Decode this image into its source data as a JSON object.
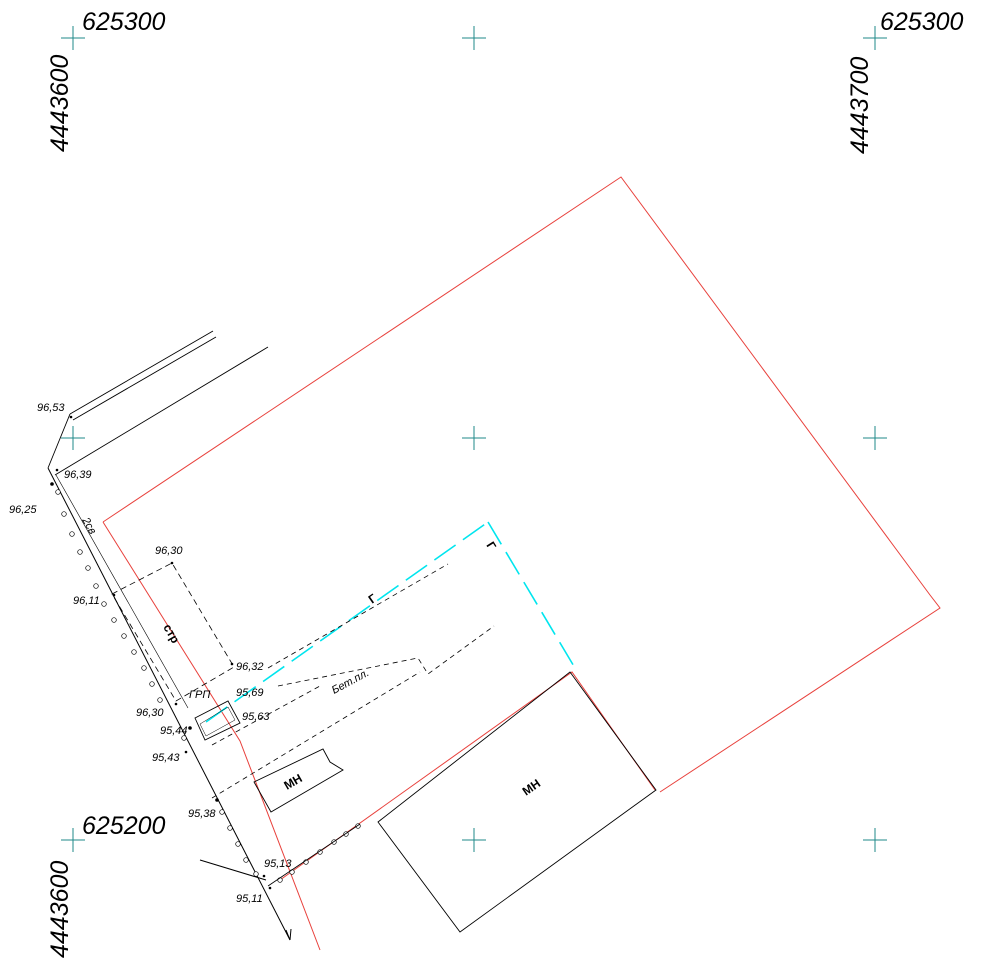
{
  "grid": {
    "top_left_x": "625300",
    "top_left_y": "4443600",
    "top_right_x": "625300",
    "top_right_y": "4443700",
    "bottom_left_x": "625200",
    "bottom_left_y": "4443600"
  },
  "elevations": [
    "96,53",
    "96,39",
    "96,25",
    "96,30",
    "96,11",
    "96,32",
    "95,69",
    "95,63",
    "96,30",
    "95,44",
    "95,43",
    "95,38",
    "95,13",
    "95,11"
  ],
  "labels": {
    "str": "стр",
    "grp": "ГРП",
    "bet": "Бет.пл.",
    "two_sv": "2св",
    "mn_small": "МН",
    "mn_large": "МН",
    "gas1": "Г",
    "gas2": "Г"
  },
  "colors": {
    "boundary": "#e8413c",
    "cross": "#1f8a8a",
    "gas": "#00e5ee",
    "line": "#000000"
  }
}
